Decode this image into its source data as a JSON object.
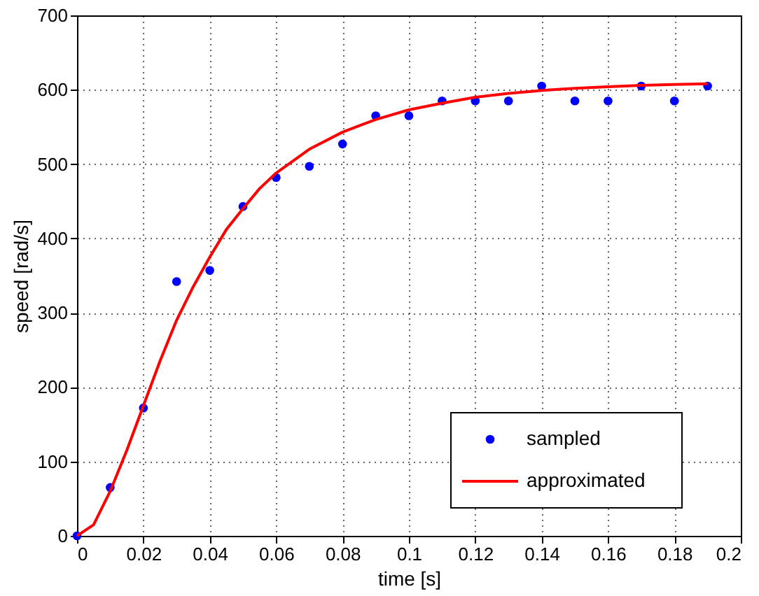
{
  "chart_data": {
    "type": "scatter",
    "xlabel": "time [s]",
    "ylabel": "speed [rad/s]",
    "xlim": [
      0,
      0.2
    ],
    "xticks": [
      0,
      0.02,
      0.04,
      0.06,
      0.08,
      0.1,
      0.12,
      0.14,
      0.16,
      0.18,
      0.2
    ],
    "ylim": [
      0,
      700
    ],
    "yticks": [
      0,
      100,
      200,
      300,
      400,
      500,
      600,
      700
    ],
    "grid": true,
    "legend": "bottom right",
    "series": [
      {
        "name": "sampled",
        "type": "scatter",
        "marker": "circle",
        "color": "#0000ff",
        "x": [
          0,
          0.01,
          0.02,
          0.03,
          0.04,
          0.05,
          0.06,
          0.07,
          0.08,
          0.09,
          0.1,
          0.11,
          0.12,
          0.13,
          0.14,
          0.15,
          0.16,
          0.17,
          0.18,
          0.19
        ],
        "values": [
          0,
          65,
          172,
          342,
          357,
          443,
          482,
          497,
          527,
          565,
          565,
          585,
          585,
          585,
          605,
          585,
          585,
          605,
          585,
          605
        ]
      },
      {
        "name": "approximated",
        "type": "line",
        "line_style": "solid",
        "color": "#ff0000",
        "x": [
          0,
          0.005,
          0.01,
          0.015,
          0.02,
          0.025,
          0.03,
          0.035,
          0.04,
          0.045,
          0.05,
          0.055,
          0.06,
          0.07,
          0.08,
          0.09,
          0.1,
          0.11,
          0.12,
          0.13,
          0.14,
          0.15,
          0.16,
          0.17,
          0.18,
          0.19
        ],
        "values": [
          0,
          15,
          60,
          115,
          175,
          235,
          290,
          335,
          375,
          412,
          440,
          467,
          488,
          520,
          543,
          560,
          573,
          582,
          590,
          595,
          599,
          602,
          604,
          606,
          607,
          608
        ]
      }
    ]
  }
}
